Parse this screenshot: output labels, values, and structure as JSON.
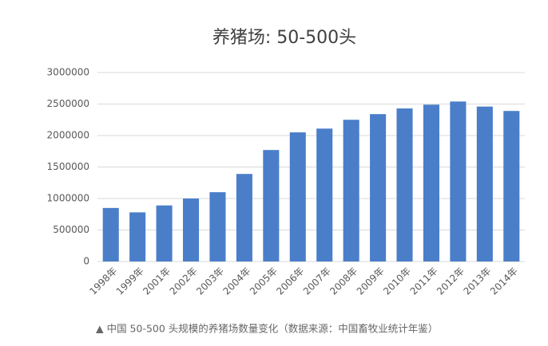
{
  "chart_data": {
    "type": "bar",
    "title": "养猪场: 50-500头",
    "categories": [
      "1998年",
      "1999年",
      "2001年",
      "2002年",
      "2003年",
      "2004年",
      "2005年",
      "2006年",
      "2007年",
      "2008年",
      "2009年",
      "2010年",
      "2011年",
      "2012年",
      "2013年",
      "2014年"
    ],
    "values": [
      850000,
      780000,
      890000,
      1000000,
      1100000,
      1390000,
      1770000,
      2050000,
      2110000,
      2250000,
      2340000,
      2430000,
      2490000,
      2540000,
      2460000,
      2390000
    ],
    "color": "#4a7ec9",
    "ylim": [
      0,
      3000000
    ],
    "yticks": [
      0,
      500000,
      1000000,
      1500000,
      2000000,
      2500000,
      3000000
    ],
    "grid": true,
    "caption": "▲ 中国 50-500 头规模的养猪场数量变化（数据来源：中国畜牧业统计年鉴）"
  }
}
